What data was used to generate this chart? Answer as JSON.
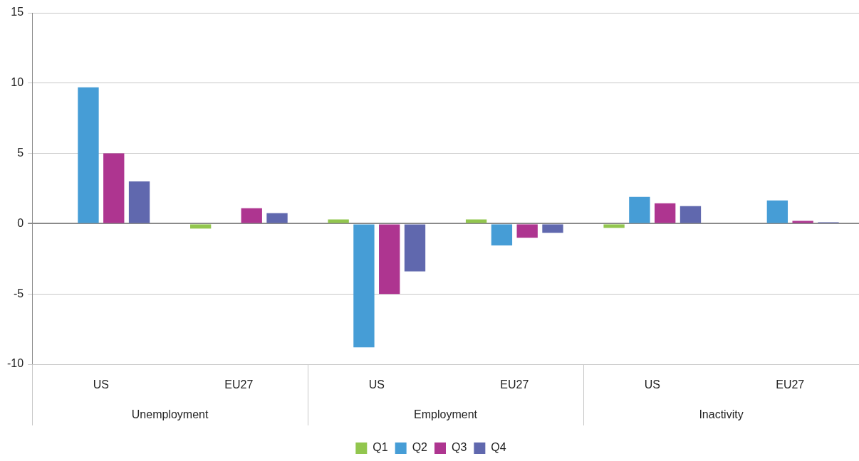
{
  "chart_data": {
    "type": "bar",
    "categories": [
      "US",
      "EU27",
      "US",
      "EU27",
      "US",
      "EU27"
    ],
    "annotations": [
      "Unemployment",
      "Employment",
      "Inactivity"
    ],
    "series": [
      {
        "name": "Q1",
        "color": "#92c64e",
        "values": [
          0.05,
          -0.35,
          0.3,
          0.3,
          -0.3,
          0
        ]
      },
      {
        "name": "Q2",
        "color": "#469dd6",
        "values": [
          9.7,
          0.05,
          -8.8,
          -1.55,
          1.9,
          1.65
        ]
      },
      {
        "name": "Q3",
        "color": "#ae3590",
        "values": [
          5.0,
          1.1,
          -5.0,
          -1.0,
          1.45,
          0.2
        ]
      },
      {
        "name": "Q4",
        "color": "#6068ae",
        "values": [
          3.0,
          0.75,
          -3.4,
          -0.65,
          1.25,
          0.1
        ]
      }
    ],
    "ylim": [
      -10,
      15
    ],
    "yticks": [
      -10,
      -5,
      0,
      5,
      10,
      15
    ],
    "grid": "y",
    "legend": "bottom"
  }
}
